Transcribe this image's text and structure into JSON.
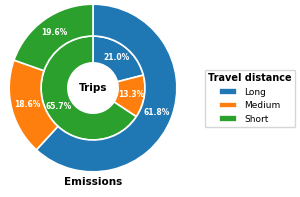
{
  "chart_data": {
    "type": "pie",
    "categories": [
      "Long",
      "Medium",
      "Short"
    ],
    "legend_title": "Travel distance",
    "legend": "center right",
    "data_labels": true,
    "series": [
      {
        "name": "Trips",
        "values": [
          21.0,
          13.3,
          65.7
        ],
        "value_labels": [
          "21.0%",
          "13.3%",
          "65.7%"
        ]
      },
      {
        "name": "Emissions",
        "values": [
          61.8,
          18.6,
          19.6
        ],
        "value_labels": [
          "61.8%",
          "18.6%",
          "19.6%"
        ]
      }
    ]
  }
}
